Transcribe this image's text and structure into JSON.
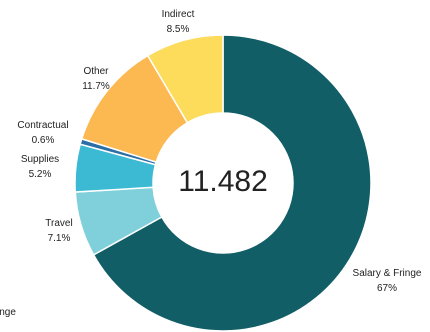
{
  "chart_data": {
    "type": "pie",
    "variant": "donut",
    "center_label": "11.482",
    "categories": [
      "Salary & Fringe",
      "Travel",
      "Supplies",
      "Contractual",
      "Other",
      "Indirect"
    ],
    "values": [
      67,
      7.1,
      5.2,
      0.6,
      11.7,
      8.5
    ],
    "value_labels": [
      "67%",
      "7.1%",
      "5.2%",
      "0.6%",
      "11.7%",
      "8.5%"
    ],
    "colors": [
      "#115e67",
      "#7fd0da",
      "#3cb9d3",
      "#2c6fa8",
      "#fcb851",
      "#fddb5b"
    ],
    "cropped_label_fragment": "inge",
    "legend": "none"
  }
}
